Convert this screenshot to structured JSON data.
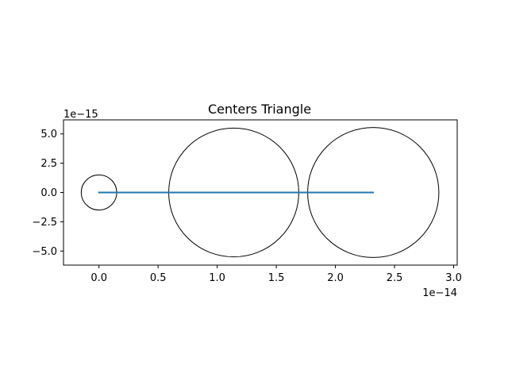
{
  "chart_data": {
    "type": "line",
    "title": "Centers Triangle",
    "xlabel": "",
    "ylabel": "",
    "x_offset_text": "1e−14",
    "y_offset_text": "1e−15",
    "xlim": [
      -3e-15,
      3.03e-14
    ],
    "ylim": [
      -6.2e-15,
      6.2e-15
    ],
    "x_ticks": [
      0,
      5e-15,
      1e-14,
      1.5e-14,
      2e-14,
      2.5e-14,
      3e-14
    ],
    "x_tick_labels": [
      "0.0",
      "0.5",
      "1.0",
      "1.5",
      "2.0",
      "2.5",
      "3.0"
    ],
    "y_ticks": [
      5e-15,
      2.5e-15,
      0,
      -2.5e-15,
      -5e-15
    ],
    "y_tick_labels": [
      "5.0",
      "2.5",
      "0.0",
      "−2.5",
      "−5.0"
    ],
    "grid": false,
    "series": [
      {
        "color": "#1f77b4",
        "x": [
          0,
          1.14e-14,
          2.32e-14,
          0
        ],
        "y": [
          0,
          0,
          0,
          0
        ]
      }
    ],
    "circles": [
      {
        "cx": 0,
        "cy": 0,
        "r": 1.5e-15,
        "color": "#000000"
      },
      {
        "cx": 1.14e-14,
        "cy": 0,
        "r": 5.5e-15,
        "color": "#000000"
      },
      {
        "cx": 2.32e-14,
        "cy": 0,
        "r": 5.55e-15,
        "color": "#000000"
      }
    ]
  }
}
